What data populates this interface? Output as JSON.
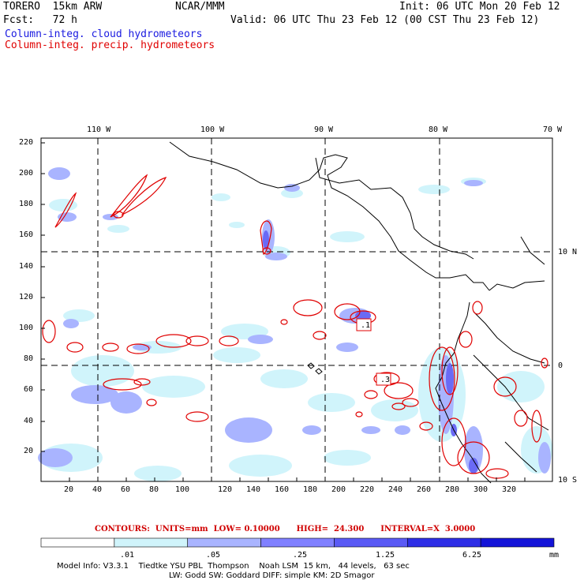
{
  "header": {
    "model_name": "TORERO  15km ARW",
    "center": "NCAR/MMM",
    "init": "Init: 06 UTC Mon 20 Feb 12",
    "fcst": "Fcst:   72 h",
    "valid": "Valid: 06 UTC Thu 23 Feb 12 (00 CST Thu 23 Feb 12)",
    "field_cloud": "Column-integ. cloud hydrometeors",
    "field_precip": "Column-integ. precip. hydrometeors"
  },
  "axes": {
    "x_ticks": [
      "20",
      "40",
      "60",
      "80",
      "100",
      "120",
      "140",
      "160",
      "180",
      "200",
      "220",
      "240",
      "260",
      "280",
      "300",
      "320"
    ],
    "y_ticks": [
      "20",
      "40",
      "60",
      "80",
      "100",
      "120",
      "140",
      "160",
      "180",
      "200",
      "220"
    ],
    "lon_labels": [
      "110 W",
      "100 W",
      "90 W",
      "80 W",
      "70 W"
    ],
    "lat_labels": [
      "10 N",
      "0",
      "10 S"
    ]
  },
  "contours_line": {
    "label": "CONTOURS:",
    "units": "UNITS=mm",
    "low": "LOW= 0.10000",
    "high": "HIGH=  24.300",
    "interval": "INTERVAL=X  3.0000"
  },
  "colorbar": {
    "labels": [
      ".01",
      ".05",
      ".25",
      "1.25",
      "6.25"
    ],
    "unit": "mm",
    "colors": [
      "#ffffff",
      "#d0f4fb",
      "#a9b4ff",
      "#8080ff",
      "#5a5af5",
      "#2e2ee6",
      "#1414d8"
    ]
  },
  "model_info": {
    "line1": "Model Info: V3.3.1    Tiedtke YSU PBL  Thompson    Noah LSM  15 km,   44 levels,   63 sec",
    "line2": "LW: Godd SW: Goddard DIFF: simple KM: 2D Smagor"
  },
  "map_labels": {
    "low1": ".1",
    "low3": ".3"
  }
}
